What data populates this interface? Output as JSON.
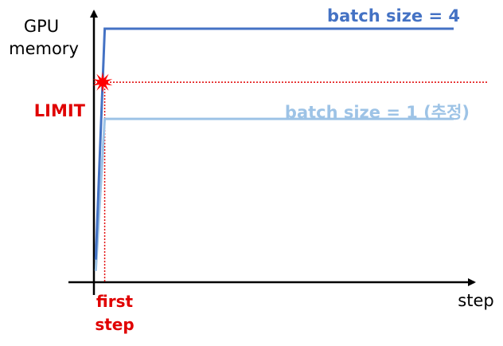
{
  "chart_data": {
    "type": "line",
    "xlabel": "step",
    "ylabel_lines": [
      "GPU",
      "memory"
    ],
    "limit_label": "LIMIT",
    "first_step_lines": [
      "first",
      "step"
    ],
    "series": [
      {
        "name": "batch size = 4",
        "color": "#4472C4",
        "points": [
          [
            0.05,
            0.08
          ],
          [
            0.3,
            0.9
          ],
          [
            10,
            0.9
          ]
        ]
      },
      {
        "name": "batch size = 1 (추정)",
        "color": "#9DC3E6",
        "points": [
          [
            0.05,
            0.04
          ],
          [
            0.3,
            0.58
          ],
          [
            10,
            0.58
          ]
        ]
      }
    ],
    "limit_value": 0.71,
    "first_step_x": 0.3,
    "colors": {
      "limit": "#E00000",
      "axis": "#000000"
    },
    "icons": [
      "burst-icon"
    ]
  }
}
